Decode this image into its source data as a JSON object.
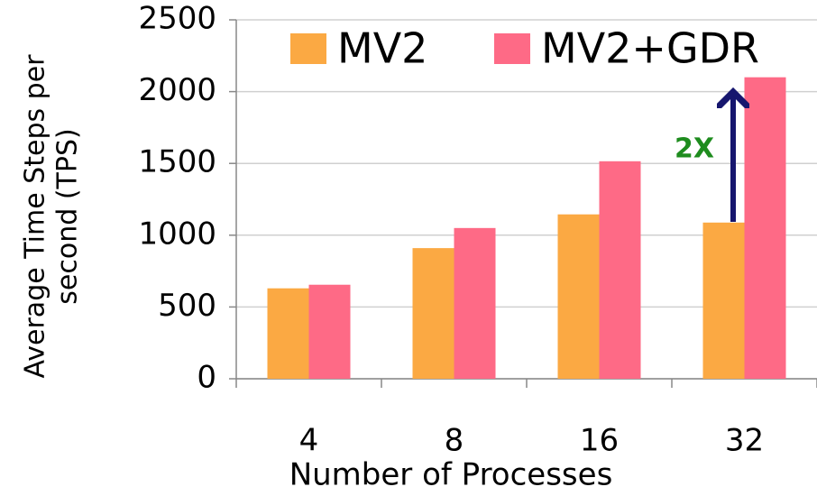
{
  "chart_data": {
    "type": "bar",
    "categories": [
      "4",
      "8",
      "16",
      "32"
    ],
    "series": [
      {
        "name": "MV2",
        "color": "#fba943",
        "values": [
          630,
          910,
          1145,
          1088
        ]
      },
      {
        "name": "MV2+GDR",
        "color": "#fe6a86",
        "values": [
          655,
          1050,
          1515,
          2100
        ]
      }
    ],
    "ylim": [
      0,
      2500
    ],
    "yticks": [
      0,
      500,
      1000,
      1500,
      2000,
      2500
    ],
    "grid": true,
    "x_label": "Number of Processes",
    "y_label": [
      "Average Time Steps per",
      "second (TPS)"
    ],
    "annotation": "2X",
    "legend": "top"
  }
}
